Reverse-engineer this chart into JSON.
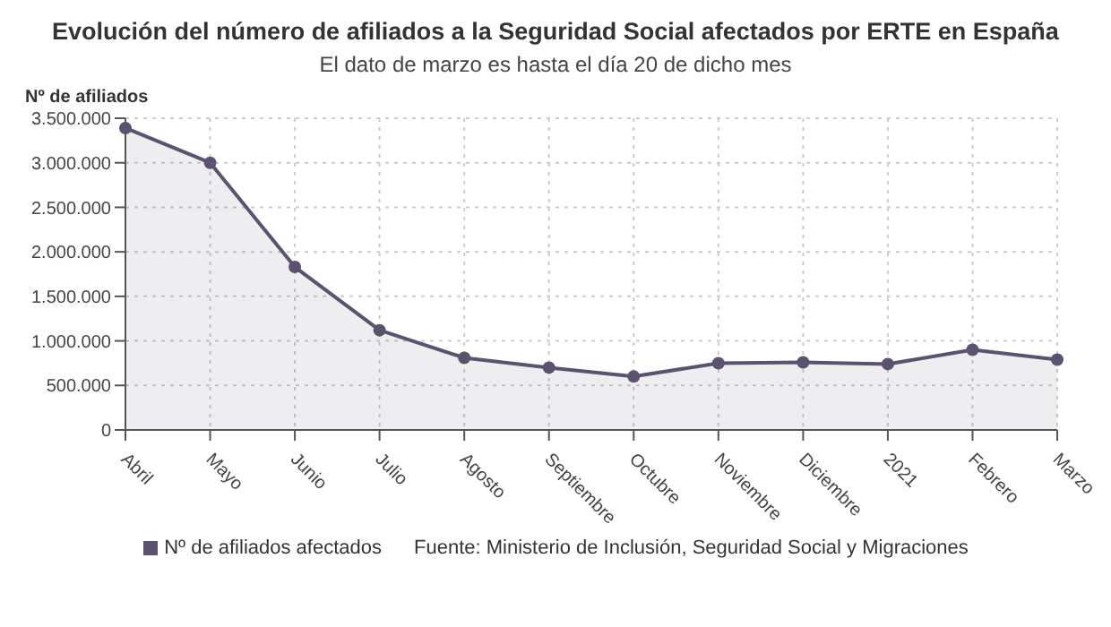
{
  "chart_data": {
    "type": "area",
    "title": "Evolución del número de afiliados a la Seguridad Social afectados por ERTE en España",
    "subtitle": "El dato de marzo es hasta el día 20 de dicho mes",
    "ylabel": "Nº de afiliados",
    "categories": [
      "Abril",
      "Mayo",
      "Junio",
      "Julio",
      "Agosto",
      "Septiembre",
      "Octubre",
      "Noviembre",
      "Diciembre",
      "2021",
      "Febrero",
      "Marzo"
    ],
    "series": [
      {
        "name": "Nº de afiliados afectados",
        "color": "#5b5270",
        "values": [
          3390000,
          3000000,
          1830000,
          1120000,
          810000,
          700000,
          600000,
          750000,
          760000,
          740000,
          900000,
          790000
        ]
      }
    ],
    "ylim": [
      0,
      3500000
    ],
    "yticks": [
      {
        "value": 0,
        "label": "0"
      },
      {
        "value": 500000,
        "label": "500.000"
      },
      {
        "value": 1000000,
        "label": "1.000.000"
      },
      {
        "value": 1500000,
        "label": "1.500.000"
      },
      {
        "value": 2000000,
        "label": "2.000.000"
      },
      {
        "value": 2500000,
        "label": "2.500.000"
      },
      {
        "value": 3000000,
        "label": "3.000.000"
      },
      {
        "value": 3500000,
        "label": "3.500.000"
      }
    ],
    "grid": true,
    "legend": "bottom",
    "marker": "circle",
    "annotations": [
      "Fuente: Ministerio de Inclusión, Seguridad Social y Migraciones"
    ]
  }
}
